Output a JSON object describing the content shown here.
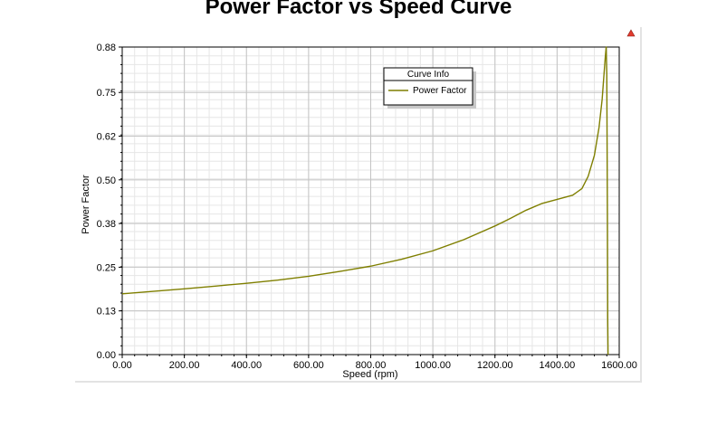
{
  "title": "Power Factor vs Speed Curve",
  "warning_icon": "warning-triangle-icon",
  "colors": {
    "series": "#7f7f00",
    "grid_major": "#c4c4c4",
    "grid_minor": "#e6e6e6",
    "warning": "#e23b2e"
  },
  "legend": {
    "header": "Curve Info",
    "entries": [
      "Power Factor"
    ]
  },
  "chart_data": {
    "type": "line",
    "title": "Power Factor vs Speed Curve",
    "xlabel": "Speed (rpm)",
    "ylabel": "Power Factor",
    "xlim": [
      0,
      1600
    ],
    "ylim": [
      0,
      0.88
    ],
    "x_ticks": [
      0,
      200,
      400,
      600,
      800,
      1000,
      1200,
      1400,
      1600
    ],
    "x_tick_labels": [
      "0.00",
      "200.00",
      "400.00",
      "600.00",
      "800.00",
      "1000.00",
      "1200.00",
      "1400.00",
      "1600.00"
    ],
    "y_ticks": [
      0,
      0.125,
      0.25,
      0.375,
      0.5,
      0.625,
      0.75,
      0.88
    ],
    "y_tick_labels": [
      "0.00",
      "0.13",
      "0.25",
      "0.38",
      "0.50",
      "0.62",
      "0.75",
      "0.88"
    ],
    "grid": true,
    "legend_position": "top-center",
    "series": [
      {
        "name": "Power Factor",
        "x": [
          0,
          100,
          200,
          300,
          400,
          500,
          600,
          700,
          800,
          900,
          1000,
          1100,
          1200,
          1250,
          1300,
          1350,
          1400,
          1450,
          1480,
          1500,
          1520,
          1535,
          1545,
          1550,
          1555,
          1558,
          1560,
          1562,
          1563,
          1564
        ],
        "y": [
          0.174,
          0.181,
          0.188,
          0.196,
          0.204,
          0.213,
          0.224,
          0.238,
          0.253,
          0.273,
          0.297,
          0.329,
          0.368,
          0.39,
          0.413,
          0.432,
          0.444,
          0.456,
          0.475,
          0.51,
          0.57,
          0.65,
          0.73,
          0.79,
          0.85,
          0.88,
          0.8,
          0.4,
          0.1,
          0
        ]
      }
    ]
  }
}
